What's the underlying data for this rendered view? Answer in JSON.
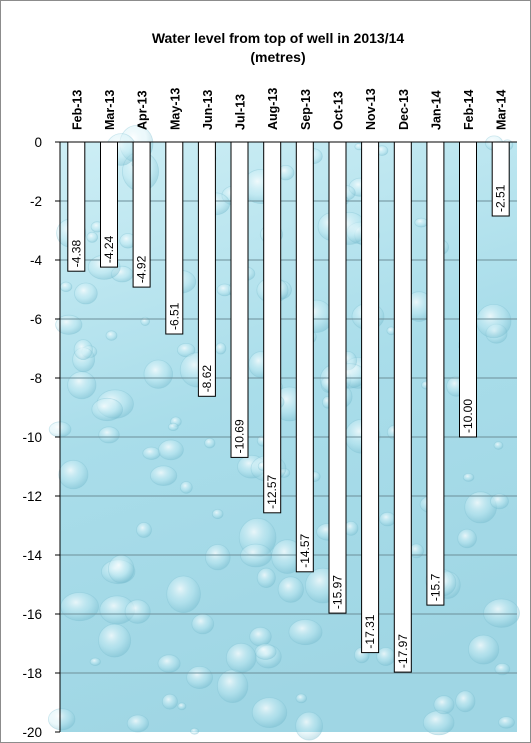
{
  "chart_data": {
    "type": "bar",
    "title": "Water level from top of well in 2013/14",
    "subtitle": "(metres)",
    "categories": [
      "Feb-13",
      "Mar-13",
      "Apr-13",
      "May-13",
      "Jun-13",
      "Jul-13",
      "Aug-13",
      "Sep-13",
      "Oct-13",
      "Nov-13",
      "Dec-13",
      "Jan-14",
      "Feb-14",
      "Mar-14"
    ],
    "values": [
      -4.38,
      -4.24,
      -4.92,
      -6.51,
      -8.62,
      -10.69,
      -12.57,
      -14.57,
      -15.97,
      -17.31,
      -17.97,
      -15.7,
      -10.0,
      -2.51
    ],
    "data_labels": [
      "-4.38",
      "-4.24",
      "-4.92",
      "-6.51",
      "-8.62",
      "-10.69",
      "-12.57",
      "-14.57",
      "-15.97",
      "-17.31",
      "-17.97",
      "-15.7",
      "-10.00",
      "-2.51"
    ],
    "ylim": [
      -20,
      0
    ],
    "yticks": [
      "0",
      "-2",
      "-4",
      "-6",
      "-8",
      "-10",
      "-12",
      "-14",
      "-16",
      "-18",
      "-20"
    ],
    "ytick_values": [
      0,
      -2,
      -4,
      -6,
      -8,
      -10,
      -12,
      -14,
      -16,
      -18,
      -20
    ],
    "category_axis": "top",
    "grid": true,
    "legend": false,
    "colors": {
      "plot_background": "#aee0ec",
      "plot_background_light": "#d4f0f6",
      "bar_fill": "#ffffff",
      "bar_stroke": "#000000",
      "gridline": "#6d8f99"
    }
  }
}
